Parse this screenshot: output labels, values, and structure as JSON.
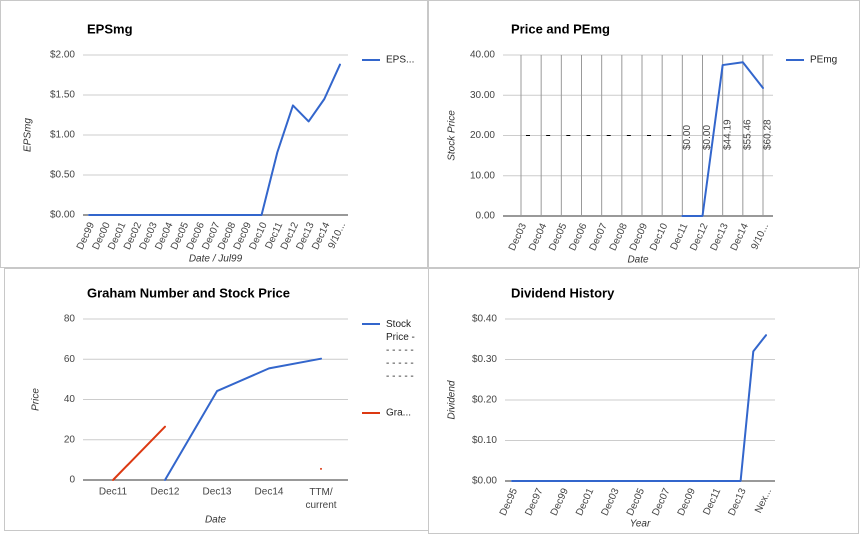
{
  "chart_data": [
    {
      "type": "line",
      "title": "EPSmg",
      "categories": [
        "Dec99",
        "Dec00",
        "Dec01",
        "Dec02",
        "Dec03",
        "Dec04",
        "Dec05",
        "Dec06",
        "Dec07",
        "Dec08",
        "Dec09",
        "Dec10",
        "Dec11",
        "Dec12",
        "Dec13",
        "Dec14",
        "9/10..."
      ],
      "series": [
        {
          "name": "EPS...",
          "color": "#3366cc",
          "values": [
            0,
            0,
            0,
            0,
            0,
            0,
            0,
            0,
            0,
            0,
            0,
            0,
            0.78,
            1.37,
            1.17,
            1.45,
            1.88
          ]
        }
      ],
      "ylim": [
        0,
        2
      ],
      "yticks": [
        {
          "value": 0,
          "label": "$0.00"
        },
        {
          "value": 0.5,
          "label": "$0.50"
        },
        {
          "value": 1,
          "label": "$1.00"
        },
        {
          "value": 1.5,
          "label": "$1.50"
        },
        {
          "value": 2,
          "label": "$2.00"
        }
      ],
      "ylabel": "EPSmg",
      "xlabel": "Date / Jul99",
      "grid": true,
      "legend": "right"
    },
    {
      "type": "line",
      "title": "Price and PEmg",
      "categories": [
        "Dec03",
        "Dec04",
        "Dec05",
        "Dec06",
        "Dec07",
        "Dec08",
        "Dec09",
        "Dec10",
        "Dec11",
        "Dec12",
        "Dec13",
        "Dec14",
        "9/10..."
      ],
      "series": [
        {
          "name": "PEmg",
          "color": "#3366cc",
          "values": [
            null,
            null,
            null,
            null,
            null,
            null,
            null,
            null,
            0,
            0,
            37.5,
            38.2,
            31.8
          ]
        },
        {
          "color": "#000000",
          "marker": "dash",
          "values": [
            20,
            20,
            20,
            20,
            20,
            20,
            20,
            20,
            null,
            null,
            null,
            null,
            null
          ]
        }
      ],
      "annotations": [
        {
          "x": "Dec11",
          "text": "$0.00"
        },
        {
          "x": "Dec12",
          "text": "$0.00"
        },
        {
          "x": "Dec13",
          "text": "$44.19"
        },
        {
          "x": "Dec14",
          "text": "$55.46"
        },
        {
          "x": "9/10...",
          "text": "$60.28"
        }
      ],
      "ylim": [
        0,
        40
      ],
      "yticks": [
        {
          "value": 0,
          "label": "0.00"
        },
        {
          "value": 10,
          "label": "10.00"
        },
        {
          "value": 20,
          "label": "20.00"
        },
        {
          "value": 30,
          "label": "30.00"
        },
        {
          "value": 40,
          "label": "40.00"
        }
      ],
      "ylabel": "Stock Price",
      "xlabel": "Date",
      "grid": true,
      "xgrid": true,
      "legend": "right"
    },
    {
      "type": "line",
      "title": "Graham Number and Stock Price",
      "categories": [
        "Dec11",
        "Dec12",
        "Dec13",
        "Dec14",
        "TTM/\ncurrent"
      ],
      "series": [
        {
          "name": "Stock\nPrice -\n- - - - -\n- - - - -\n- - - - -",
          "color": "#3366cc",
          "values": [
            null,
            0,
            44.19,
            55.46,
            60.28
          ]
        },
        {
          "name": "Gra...",
          "color": "#dc3912",
          "values": [
            0,
            26.5,
            null,
            null,
            5.5
          ]
        }
      ],
      "ylim": [
        0,
        80
      ],
      "yticks": [
        0,
        20,
        40,
        60,
        80
      ],
      "ylabel": "Price",
      "xlabel": "Date",
      "grid": true,
      "legend": "right"
    },
    {
      "type": "line",
      "title": "Dividend History",
      "categories": [
        "Dec95",
        null,
        "Dec97",
        null,
        "Dec99",
        null,
        "Dec01",
        null,
        "Dec03",
        null,
        "Dec05",
        null,
        "Dec07",
        null,
        "Dec09",
        null,
        "Dec11",
        null,
        "Dec13",
        null,
        "Nex..."
      ],
      "series": [
        {
          "color": "#3366cc",
          "values": [
            0,
            0,
            0,
            0,
            0,
            0,
            0,
            0,
            0,
            0,
            0,
            0,
            0,
            0,
            0,
            0,
            0,
            0,
            0,
            0.32,
            0.36
          ]
        }
      ],
      "ylim": [
        0,
        0.4
      ],
      "yticks": [
        {
          "value": 0,
          "label": "$0.00"
        },
        {
          "value": 0.1,
          "label": "$0.10"
        },
        {
          "value": 0.2,
          "label": "$0.20"
        },
        {
          "value": 0.3,
          "label": "$0.30"
        },
        {
          "value": 0.4,
          "label": "$0.40"
        }
      ],
      "ylabel": "Dividend",
      "xlabel": "Year",
      "grid": true
    }
  ]
}
